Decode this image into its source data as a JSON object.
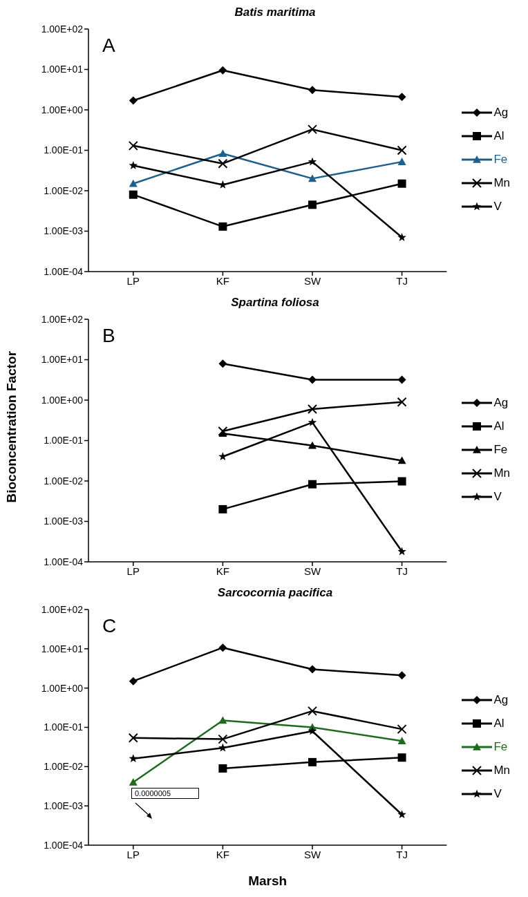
{
  "chart_data": [
    {
      "type": "line",
      "title": "Batis maritima",
      "annotations": [
        "A"
      ],
      "categories": [
        "LP",
        "KF",
        "SW",
        "TJ"
      ],
      "log": "y",
      "ylim": [
        0.0001,
        100
      ],
      "yticks": [
        {
          "value": 0.0001,
          "label": "1.00E-04"
        },
        {
          "value": 0.001,
          "label": "1.00E-03"
        },
        {
          "value": 0.01,
          "label": "1.00E-02"
        },
        {
          "value": 0.1,
          "label": "1.00E-01"
        },
        {
          "value": 1,
          "label": "1.00E+00"
        },
        {
          "value": 10,
          "label": "1.00E+01"
        },
        {
          "value": 100,
          "label": "1.00E+02"
        }
      ],
      "grid": false,
      "legend": "right",
      "series": [
        {
          "name": "Ag",
          "color": "#000000",
          "marker": "diamond",
          "values": [
            1.7,
            9.5,
            3.1,
            2.1
          ]
        },
        {
          "name": "Al",
          "color": "#000000",
          "marker": "square",
          "values": [
            0.008,
            0.0013,
            0.0045,
            0.015
          ]
        },
        {
          "name": "Fe",
          "color": "#1f5f8b",
          "marker": "triangle",
          "values": [
            0.015,
            0.083,
            0.02,
            0.052
          ]
        },
        {
          "name": "Mn",
          "color": "#000000",
          "marker": "cross",
          "values": [
            0.13,
            0.047,
            0.33,
            0.1
          ]
        },
        {
          "name": "V",
          "color": "#000000",
          "marker": "star",
          "values": [
            0.042,
            0.014,
            0.052,
            0.0007
          ]
        }
      ]
    },
    {
      "type": "line",
      "title": "Spartina foliosa",
      "ylabel": "Bioconcentration Factor",
      "annotations": [
        "B"
      ],
      "categories": [
        "LP",
        "KF",
        "SW",
        "TJ"
      ],
      "log": "y",
      "ylim": [
        0.0001,
        100
      ],
      "yticks": [
        {
          "value": 0.0001,
          "label": "1.00E-04"
        },
        {
          "value": 0.001,
          "label": "1.00E-03"
        },
        {
          "value": 0.01,
          "label": "1.00E-02"
        },
        {
          "value": 0.1,
          "label": "1.00E-01"
        },
        {
          "value": 1,
          "label": "1.00E+00"
        },
        {
          "value": 10,
          "label": "1.00E+01"
        },
        {
          "value": 100,
          "label": "1.00E+02"
        }
      ],
      "grid": false,
      "legend": "right",
      "series": [
        {
          "name": "Ag",
          "color": "#000000",
          "marker": "diamond",
          "values": [
            null,
            8,
            3.2,
            3.2
          ]
        },
        {
          "name": "Al",
          "color": "#000000",
          "marker": "square",
          "values": [
            null,
            0.002,
            0.0083,
            0.0098
          ]
        },
        {
          "name": "Fe",
          "color": "#000000",
          "marker": "triangle",
          "values": [
            null,
            0.15,
            0.075,
            0.032
          ]
        },
        {
          "name": "Mn",
          "color": "#000000",
          "marker": "cross",
          "values": [
            null,
            0.17,
            0.6,
            0.9
          ]
        },
        {
          "name": "V",
          "color": "#000000",
          "marker": "star",
          "values": [
            null,
            0.04,
            0.28,
            0.00018
          ]
        }
      ]
    },
    {
      "type": "line",
      "title": "Sarcocornia pacifica",
      "xlabel": "Marsh",
      "annotations": [
        "C",
        "0.0000005"
      ],
      "categories": [
        "LP",
        "KF",
        "SW",
        "TJ"
      ],
      "log": "y",
      "ylim": [
        0.0001,
        100
      ],
      "yticks": [
        {
          "value": 0.0001,
          "label": "1.00E-04"
        },
        {
          "value": 0.001,
          "label": "1.00E-03"
        },
        {
          "value": 0.01,
          "label": "1.00E-02"
        },
        {
          "value": 0.1,
          "label": "1.00E-01"
        },
        {
          "value": 1,
          "label": "1.00E+00"
        },
        {
          "value": 10,
          "label": "1.00E+01"
        },
        {
          "value": 100,
          "label": "1.00E+02"
        }
      ],
      "grid": false,
      "legend": "right",
      "series": [
        {
          "name": "Ag",
          "color": "#000000",
          "marker": "diamond",
          "values": [
            1.5,
            10.7,
            3,
            2.1
          ]
        },
        {
          "name": "Al",
          "color": "#000000",
          "marker": "square",
          "values": [
            null,
            0.009,
            0.013,
            0.017
          ]
        },
        {
          "name": "Fe",
          "color": "#1e6b1e",
          "marker": "triangle",
          "values": [
            0.004,
            0.15,
            0.1,
            0.045
          ]
        },
        {
          "name": "Mn",
          "color": "#000000",
          "marker": "cross",
          "values": [
            0.054,
            0.05,
            0.26,
            0.09
          ]
        },
        {
          "name": "V",
          "color": "#000000",
          "marker": "star",
          "values": [
            0.016,
            0.03,
            0.08,
            0.0006
          ]
        }
      ]
    }
  ]
}
